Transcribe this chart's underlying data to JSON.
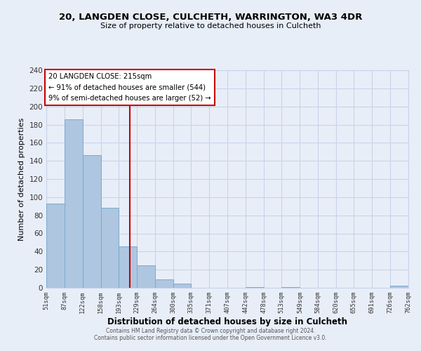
{
  "title": "20, LANGDEN CLOSE, CULCHETH, WARRINGTON, WA3 4DR",
  "subtitle": "Size of property relative to detached houses in Culcheth",
  "xlabel": "Distribution of detached houses by size in Culcheth",
  "ylabel": "Number of detached properties",
  "bar_edges": [
    51,
    87,
    122,
    158,
    193,
    229,
    264,
    300,
    335,
    371,
    407,
    442,
    478,
    513,
    549,
    584,
    620,
    655,
    691,
    726,
    762
  ],
  "bar_heights": [
    93,
    186,
    146,
    88,
    46,
    25,
    9,
    5,
    0,
    0,
    0,
    1,
    0,
    1,
    0,
    0,
    0,
    0,
    0,
    2
  ],
  "bar_color": "#aec6df",
  "bar_edge_color": "#7baacf",
  "vline_x": 215,
  "vline_color": "#cc0000",
  "annotation_text_line1": "20 LANGDEN CLOSE: 215sqm",
  "annotation_text_line2": "← 91% of detached houses are smaller (544)",
  "annotation_text_line3": "9% of semi-detached houses are larger (52) →",
  "annotation_box_color": "#ffffff",
  "annotation_box_edge_color": "#cc0000",
  "ylim": [
    0,
    240
  ],
  "yticks": [
    0,
    20,
    40,
    60,
    80,
    100,
    120,
    140,
    160,
    180,
    200,
    220,
    240
  ],
  "tick_labels": [
    "51sqm",
    "87sqm",
    "122sqm",
    "158sqm",
    "193sqm",
    "229sqm",
    "264sqm",
    "300sqm",
    "335sqm",
    "371sqm",
    "407sqm",
    "442sqm",
    "478sqm",
    "513sqm",
    "549sqm",
    "584sqm",
    "620sqm",
    "655sqm",
    "691sqm",
    "726sqm",
    "762sqm"
  ],
  "grid_color": "#c8d4e8",
  "background_color": "#e8eef8",
  "plot_bg_color": "#e8eef8",
  "footer_line1": "Contains HM Land Registry data © Crown copyright and database right 2024.",
  "footer_line2": "Contains public sector information licensed under the Open Government Licence v3.0."
}
